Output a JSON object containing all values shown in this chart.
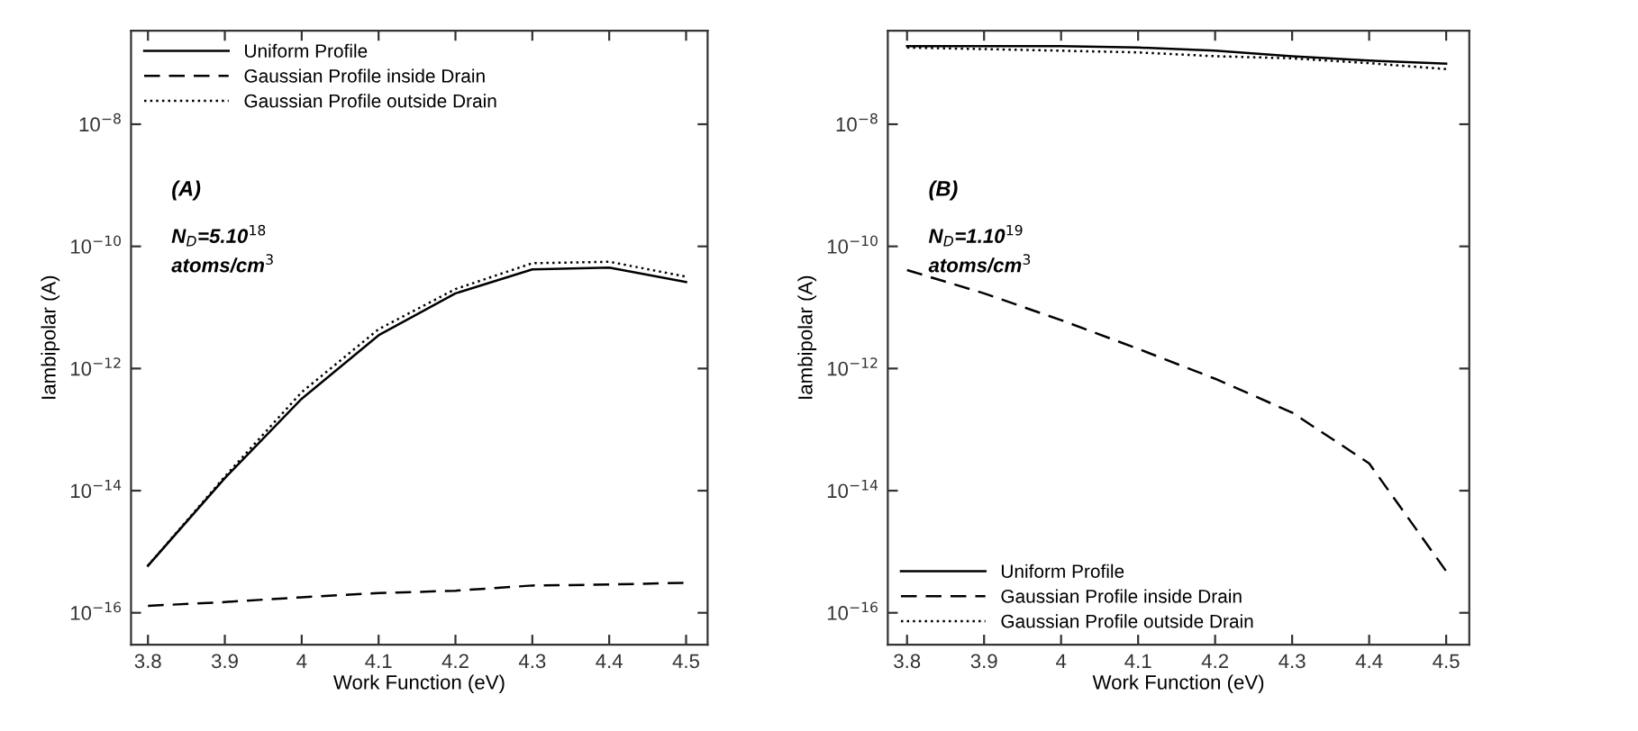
{
  "chart_data": [
    {
      "type": "line",
      "xlabel": "Work Function (eV)",
      "ylabel": "Iambipolar (A)",
      "log": "y",
      "legend": "top left",
      "grid": false,
      "marker": "none",
      "x": [
        3.8,
        3.9,
        4,
        4.1,
        4.2,
        4.3,
        4.4,
        4.5
      ],
      "xlim": [
        3.778,
        4.528
      ],
      "ylim": [
        3e-17,
        3.4e-07
      ],
      "xticks": [
        3.8,
        3.9,
        4,
        4.1,
        4.2,
        4.3,
        4.4,
        4.5
      ],
      "yticks": [
        {
          "value": 1e-16,
          "label": "10$^{−16}$"
        },
        {
          "value": 1e-14,
          "label": "10$^{−14}$"
        },
        {
          "value": 1e-12,
          "label": "10$^{−12}$"
        },
        {
          "value": 1e-10,
          "label": "10$^{−10}$"
        },
        {
          "value": 1e-08,
          "label": "10$^{−8}$"
        }
      ],
      "annotations": [
        "(A)",
        "N$_{D}$=5.10$^{18}$",
        "atoms/cm$^{3}$"
      ],
      "series": [
        {
          "name": "Uniform Profile",
          "color": "#000000",
          "line_style": "solid",
          "values": [
            5.9e-16,
            1.6e-14,
            3.2e-13,
            3.5e-12,
            1.7e-11,
            4.2e-11,
            4.5e-11,
            2.6e-11
          ]
        },
        {
          "name": "Gaussian Profile inside Drain",
          "color": "#000000",
          "line_style": "dashed",
          "values": [
            1.3e-16,
            1.5e-16,
            1.8e-16,
            2.1e-16,
            2.3e-16,
            2.8e-16,
            2.9e-16,
            3.1e-16
          ]
        },
        {
          "name": "Gaussian Profile outside Drain",
          "color": "#000000",
          "line_style": "dotted",
          "values": [
            5.9e-16,
            1.7e-14,
            4.1e-13,
            4.4e-12,
            2e-11,
            5.3e-11,
            5.6e-11,
            3.2e-11
          ]
        }
      ]
    },
    {
      "type": "line",
      "xlabel": "Work Function (eV)",
      "ylabel": "Iambipolar (A)",
      "log": "y",
      "legend": "bottom left",
      "grid": false,
      "marker": "none",
      "x": [
        3.8,
        3.9,
        4,
        4.1,
        4.2,
        4.3,
        4.4,
        4.5
      ],
      "xlim": [
        3.775,
        4.53
      ],
      "ylim": [
        3e-17,
        3.4e-07
      ],
      "xticks": [
        3.8,
        3.9,
        4,
        4.1,
        4.2,
        4.3,
        4.4,
        4.5
      ],
      "yticks": [
        {
          "value": 1e-16,
          "label": "10$^{−16}$"
        },
        {
          "value": 1e-14,
          "label": "10$^{−14}$"
        },
        {
          "value": 1e-12,
          "label": "10$^{−12}$"
        },
        {
          "value": 1e-10,
          "label": "10$^{−10}$"
        },
        {
          "value": 1e-08,
          "label": "10$^{−8}$"
        }
      ],
      "annotations": [
        "(B)",
        "N$_{D}$=1.10$^{19}$",
        "atoms/cm$^{3}$"
      ],
      "series": [
        {
          "name": "Uniform Profile",
          "color": "#000000",
          "line_style": "solid",
          "values": [
            1.9e-07,
            1.9e-07,
            1.9e-07,
            1.8e-07,
            1.6e-07,
            1.3e-07,
            1.1e-07,
            9.8e-08
          ]
        },
        {
          "name": "Gaussian Profile inside Drain",
          "color": "#000000",
          "line_style": "dashed",
          "values": [
            4.1e-11,
            1.7e-11,
            6.2e-12,
            2.1e-12,
            6.8e-13,
            1.9e-13,
            2.8e-14,
            4.8e-16
          ]
        },
        {
          "name": "Gaussian Profile outside Drain",
          "color": "#000000",
          "line_style": "dotted",
          "values": [
            1.8e-07,
            1.7e-07,
            1.6e-07,
            1.5e-07,
            1.3e-07,
            1.2e-07,
            1e-07,
            8e-08
          ]
        }
      ]
    }
  ]
}
